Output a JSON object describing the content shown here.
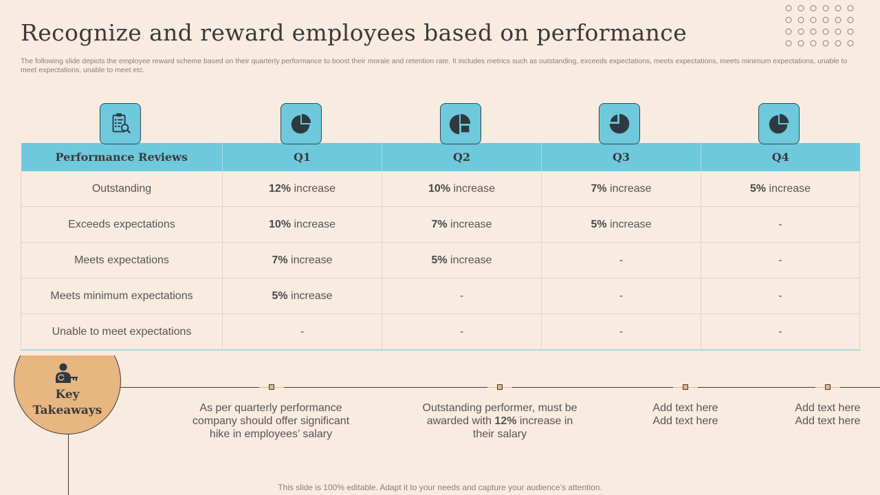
{
  "title": "Recognize and reward employees based on performance",
  "subtitle": "The following slide depicts the employee reward scheme based on their quarterly performance to boost their morale and retention rate. It includes metrics such as outstanding, exceeds expectations, meets expectations, meets minimum expectations, unable to meet expectations, unable to meet etc.",
  "icons": [
    "performance-review-icon",
    "pie-chart-icon",
    "pie-chart-icon",
    "pie-chart-icon",
    "pie-chart-icon"
  ],
  "table": {
    "headers": [
      "Performance Reviews",
      "Q1",
      "Q2",
      "Q3",
      "Q4"
    ],
    "rows": [
      {
        "label": "Outstanding",
        "cells": [
          {
            "pct": "12%",
            "text": " increase"
          },
          {
            "pct": "10%",
            "text": " increase"
          },
          {
            "pct": "7%",
            "text": " increase"
          },
          {
            "pct": "5%",
            "text": " increase"
          }
        ]
      },
      {
        "label": "Exceeds expectations",
        "cells": [
          {
            "pct": "10%",
            "text": " increase"
          },
          {
            "pct": "7%",
            "text": " increase"
          },
          {
            "pct": "5%",
            "text": " increase"
          },
          {
            "pct": "",
            "text": "-"
          }
        ]
      },
      {
        "label": "Meets expectations",
        "cells": [
          {
            "pct": "7%",
            "text": " increase"
          },
          {
            "pct": "5%",
            "text": " increase"
          },
          {
            "pct": "",
            "text": "-"
          },
          {
            "pct": "",
            "text": "-"
          }
        ]
      },
      {
        "label": "Meets minimum expectations",
        "cells": [
          {
            "pct": "5%",
            "text": " increase"
          },
          {
            "pct": "",
            "text": "-"
          },
          {
            "pct": "",
            "text": "-"
          },
          {
            "pct": "",
            "text": "-"
          }
        ]
      },
      {
        "label": "Unable to meet expectations",
        "cells": [
          {
            "pct": "",
            "text": "-"
          },
          {
            "pct": "",
            "text": "-"
          },
          {
            "pct": "",
            "text": "-"
          },
          {
            "pct": "",
            "text": "-"
          }
        ]
      }
    ]
  },
  "key_takeaways": {
    "line1": "Key",
    "line2": "Takeaways",
    "icon": "person-key-icon",
    "items": [
      {
        "lines": [
          "As per quarterly performance",
          "company should offer significant",
          "hike in employees’ salary"
        ]
      },
      {
        "line1": "Outstanding performer, must be",
        "line2_pre": "awarded with ",
        "line2_bold": "12%",
        "line2_post": " increase in",
        "line3": "their salary"
      },
      {
        "lines": [
          "Add text here",
          "Add text here"
        ]
      },
      {
        "lines": [
          "Add text here",
          "Add text here"
        ]
      }
    ]
  },
  "footer": "This slide is 100% editable. Adapt it to your needs and capture your audience’s attention.",
  "colors": {
    "background": "#f8ebdf",
    "header_blue": "#6ec9dc",
    "takeaway_orange": "#e8b680",
    "text_dark": "#3a3a3a"
  }
}
